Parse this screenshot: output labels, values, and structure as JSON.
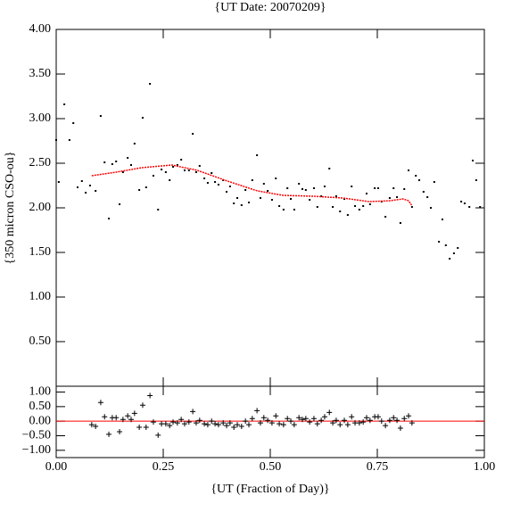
{
  "chart_data": [
    {
      "type": "scatter",
      "title": "{UT Date: 20070209}",
      "ylabel": "{350 micron CSO-ou}",
      "xlim": [
        0,
        1
      ],
      "xticks": [
        0,
        0.25,
        0.5,
        0.75,
        1
      ],
      "ylim": [
        0,
        4
      ],
      "yticks": [
        {
          "value": 0.5,
          "label": "0.50"
        },
        {
          "value": 1,
          "label": "1.00"
        },
        {
          "value": 1.5,
          "label": "1.50"
        },
        {
          "value": 2,
          "label": "2.00"
        },
        {
          "value": 2.5,
          "label": "2.50"
        },
        {
          "value": 3,
          "label": "3.00"
        },
        {
          "value": 3.5,
          "label": "3.50"
        },
        {
          "value": 4,
          "label": "4.00"
        }
      ],
      "series": [
        {
          "type": "points",
          "color": "#000000",
          "x": [
            0,
            0.006,
            0.019,
            0.031,
            0.04,
            0.05,
            0.06,
            0.069,
            0.079,
            0.092,
            0.104,
            0.113,
            0.123,
            0.131,
            0.14,
            0.148,
            0.156,
            0.167,
            0.175,
            0.183,
            0.194,
            0.202,
            0.21,
            0.219,
            0.227,
            0.238,
            0.246,
            0.256,
            0.265,
            0.273,
            0.283,
            0.292,
            0.3,
            0.31,
            0.319,
            0.327,
            0.335,
            0.346,
            0.354,
            0.363,
            0.371,
            0.379,
            0.39,
            0.398,
            0.406,
            0.415,
            0.423,
            0.433,
            0.442,
            0.45,
            0.458,
            0.469,
            0.477,
            0.485,
            0.494,
            0.504,
            0.513,
            0.521,
            0.531,
            0.54,
            0.548,
            0.556,
            0.567,
            0.575,
            0.583,
            0.592,
            0.602,
            0.61,
            0.619,
            0.627,
            0.638,
            0.646,
            0.654,
            0.663,
            0.673,
            0.681,
            0.69,
            0.698,
            0.708,
            0.717,
            0.725,
            0.733,
            0.744,
            0.752,
            0.76,
            0.769,
            0.779,
            0.788,
            0.796,
            0.804,
            0.813,
            0.823,
            0.831,
            0.84,
            0.848,
            0.858,
            0.867,
            0.875,
            0.883,
            0.894,
            0.902,
            0.91,
            0.919,
            0.929,
            0.938,
            0.946,
            0.954,
            0.965,
            0.973,
            0.981,
            0.99
          ],
          "values": [
            2.76,
            2.29,
            3.16,
            2.76,
            2.95,
            2.23,
            2.3,
            2.17,
            2.25,
            2.19,
            3.03,
            2.51,
            1.88,
            2.49,
            2.52,
            2.04,
            2.4,
            2.56,
            2.48,
            2.72,
            2.2,
            3.01,
            2.23,
            3.39,
            2.36,
            1.98,
            2.43,
            2.4,
            2.31,
            2.46,
            2.48,
            2.54,
            2.42,
            2.42,
            2.83,
            2.4,
            2.47,
            2.33,
            2.28,
            2.39,
            2.29,
            2.26,
            2.31,
            2.18,
            2.24,
            2.05,
            2.11,
            2.03,
            2.2,
            2.06,
            2.31,
            2.59,
            2.11,
            2.27,
            2.19,
            2.09,
            2.33,
            2.02,
            1.98,
            2.22,
            2.1,
            1.98,
            2.27,
            2.21,
            2.2,
            2.09,
            2.22,
            2.01,
            2.13,
            2.24,
            2.44,
            2.01,
            2.13,
            1.96,
            2.1,
            1.92,
            2.24,
            2.02,
            1.98,
            2.02,
            2.16,
            2.04,
            2.22,
            2.22,
            2.07,
            1.9,
            2.11,
            2.22,
            2.12,
            1.83,
            2.21,
            2.42,
            2.01,
            2.36,
            2.31,
            2.18,
            2.12,
            2.0,
            2.29,
            1.62,
            1.87,
            1.58,
            1.43,
            1.49,
            1.55,
            2.07,
            2.05,
            2.01,
            2.53,
            2.31,
            2.01
          ]
        },
        {
          "type": "line",
          "color": "#ff0000",
          "x": [
            0.083,
            0.14,
            0.2,
            0.27,
            0.33,
            0.4,
            0.47,
            0.53,
            0.6,
            0.67,
            0.73,
            0.78,
            0.81,
            0.823,
            0.83
          ],
          "values": [
            2.36,
            2.4,
            2.45,
            2.48,
            2.42,
            2.3,
            2.19,
            2.14,
            2.13,
            2.11,
            2.07,
            2.08,
            2.1,
            2.08,
            2.03
          ]
        }
      ]
    },
    {
      "type": "scatter",
      "xlabel": "{UT (Fraction of Day)}",
      "xlim": [
        0,
        1
      ],
      "xticks": [
        {
          "value": 0,
          "label": "0.00"
        },
        {
          "value": 0.25,
          "label": "0.25"
        },
        {
          "value": 0.5,
          "label": "0.50"
        },
        {
          "value": 0.75,
          "label": "0.75"
        },
        {
          "value": 1,
          "label": "1.00"
        }
      ],
      "ylim": [
        -1.25,
        1.2
      ],
      "yticks": [
        {
          "value": -1,
          "label": "−1.00"
        },
        {
          "value": -0.5,
          "label": "−0.50"
        },
        {
          "value": 0,
          "label": "0.00"
        },
        {
          "value": 0.5,
          "label": "0.50"
        },
        {
          "value": 1,
          "label": "1.00"
        }
      ],
      "reference_line": {
        "value": 0,
        "color": "#ff0000"
      },
      "series": [
        {
          "type": "plus",
          "color": "#000000",
          "x": [
            0.083,
            0.092,
            0.104,
            0.113,
            0.123,
            0.131,
            0.14,
            0.148,
            0.156,
            0.167,
            0.175,
            0.183,
            0.194,
            0.202,
            0.21,
            0.219,
            0.227,
            0.238,
            0.246,
            0.256,
            0.265,
            0.273,
            0.283,
            0.292,
            0.3,
            0.31,
            0.319,
            0.327,
            0.335,
            0.346,
            0.354,
            0.363,
            0.371,
            0.379,
            0.39,
            0.398,
            0.406,
            0.415,
            0.423,
            0.433,
            0.442,
            0.45,
            0.458,
            0.469,
            0.477,
            0.485,
            0.494,
            0.504,
            0.513,
            0.521,
            0.531,
            0.54,
            0.548,
            0.556,
            0.567,
            0.575,
            0.583,
            0.592,
            0.602,
            0.61,
            0.619,
            0.627,
            0.638,
            0.646,
            0.654,
            0.663,
            0.673,
            0.681,
            0.69,
            0.698,
            0.708,
            0.717,
            0.725,
            0.733,
            0.744,
            0.752,
            0.76,
            0.769,
            0.779,
            0.788,
            0.796,
            0.804,
            0.813,
            0.823,
            0.831
          ],
          "values": [
            -0.12,
            -0.18,
            0.64,
            0.15,
            -0.45,
            0.12,
            0.12,
            -0.36,
            0.06,
            0.18,
            0.06,
            0.27,
            -0.21,
            0.55,
            -0.21,
            0.88,
            -0.03,
            -0.48,
            -0.09,
            -0.09,
            -0.15,
            -0.03,
            -0.06,
            0.06,
            -0.09,
            -0.03,
            0.33,
            -0.06,
            0.03,
            -0.09,
            -0.12,
            0.0,
            -0.09,
            -0.12,
            -0.06,
            -0.15,
            -0.06,
            -0.21,
            -0.12,
            -0.18,
            0.0,
            -0.12,
            0.09,
            0.36,
            -0.06,
            0.12,
            0.03,
            -0.06,
            0.18,
            -0.09,
            -0.12,
            0.09,
            0.0,
            -0.12,
            0.12,
            0.06,
            0.09,
            -0.03,
            0.09,
            -0.09,
            0.03,
            0.15,
            0.3,
            -0.06,
            0.03,
            -0.12,
            0.03,
            -0.12,
            0.15,
            -0.06,
            -0.06,
            -0.03,
            0.12,
            0.03,
            0.15,
            0.15,
            0.0,
            -0.15,
            0.03,
            0.12,
            0.03,
            -0.24,
            0.09,
            0.18,
            -0.06
          ]
        }
      ]
    }
  ]
}
